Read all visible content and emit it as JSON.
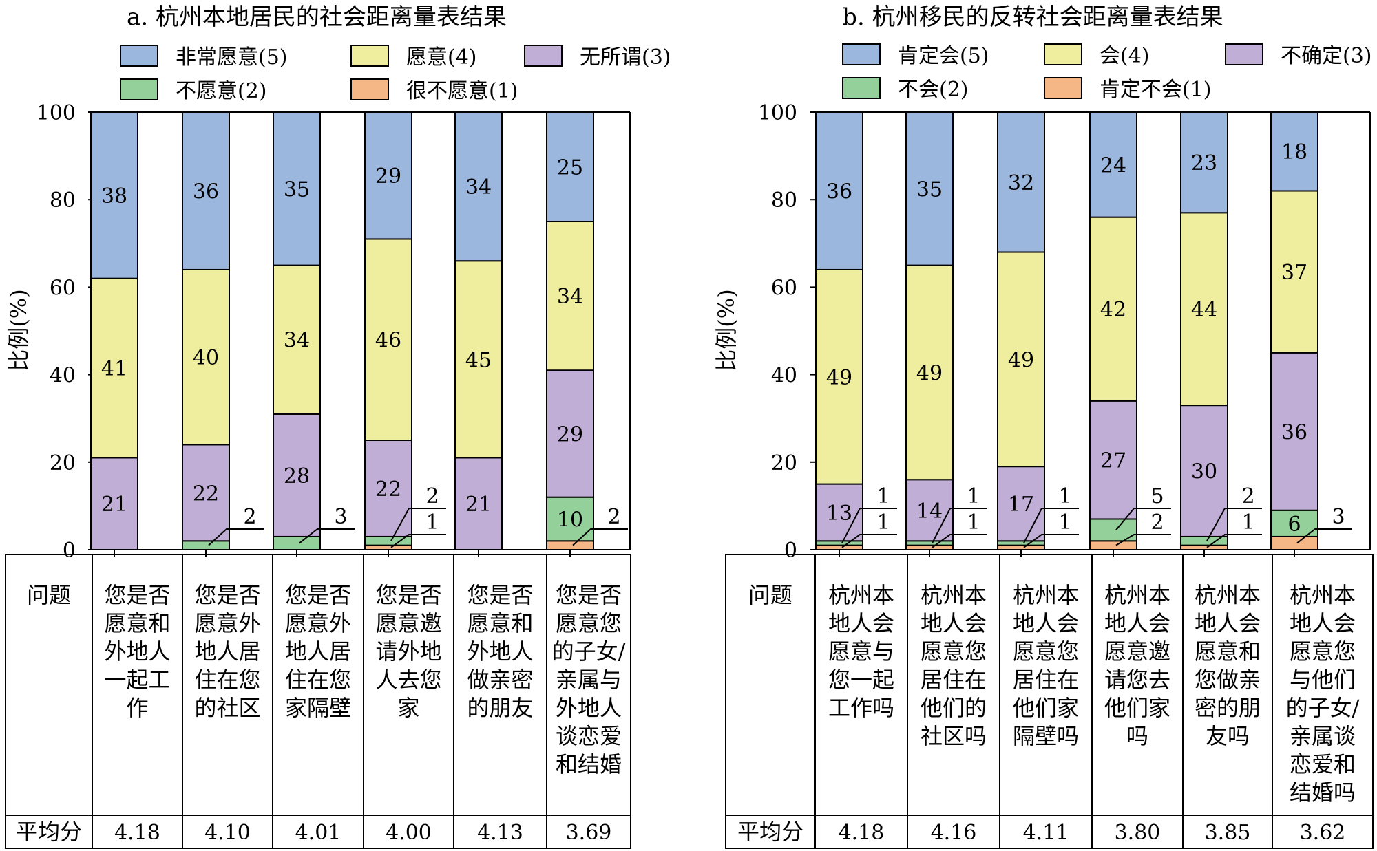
{
  "colors": {
    "s5": "#9bb7de",
    "s4": "#eeee9e",
    "s3": "#c1aed7",
    "s2": "#94d19a",
    "s1": "#f6b787",
    "stroke": "#000000"
  },
  "chart_data": [
    {
      "type": "bar",
      "stacked": true,
      "title": "a. 杭州本地居民的社会距离量表结果",
      "ylabel": "比例(%)",
      "ylim": [
        0,
        100
      ],
      "yticks": [
        "0",
        "20",
        "40",
        "60",
        "80",
        "100"
      ],
      "grid": false,
      "legend": "top",
      "series": [
        {
          "name": "非常愿意(5)",
          "color_key": "s5",
          "values": [
            38,
            36,
            35,
            29,
            34,
            25
          ]
        },
        {
          "name": "愿意(4)",
          "color_key": "s4",
          "values": [
            41,
            40,
            34,
            46,
            45,
            34
          ]
        },
        {
          "name": "无所谓(3)",
          "color_key": "s3",
          "values": [
            21,
            22,
            28,
            22,
            21,
            29
          ]
        },
        {
          "name": "不愿意(2)",
          "color_key": "s2",
          "values": [
            0,
            2,
            3,
            2,
            0,
            10
          ]
        },
        {
          "name": "很不愿意(1)",
          "color_key": "s1",
          "values": [
            0,
            0,
            0,
            1,
            0,
            2
          ]
        }
      ],
      "table": {
        "header": "问题",
        "footer": "平均分",
        "questions": [
          "您是否愿意和外地人一起工作",
          "您是否愿意外地人居住在您的社区",
          "您是否愿意外地人居住在您家隔壁",
          "您是否愿意邀请外地人去您家",
          "您是否愿意和外地人做亲密的朋友",
          "您是否愿意您的子女/亲属与外地人谈恋爱和结婚"
        ],
        "question_lines": [
          [
            "您是否",
            "愿意和",
            "外地人",
            "一起工",
            "作"
          ],
          [
            "您是否",
            "愿意外",
            "地人居",
            "住在您",
            "的社区"
          ],
          [
            "您是否",
            "愿意外",
            "地人居",
            "住在您",
            "家隔壁"
          ],
          [
            "您是否",
            "愿意邀",
            "请外地",
            "人去您",
            "家"
          ],
          [
            "您是否",
            "愿意和",
            "外地人",
            "做亲密",
            "的朋友"
          ],
          [
            "您是否",
            "愿意您",
            "的子女/",
            "亲属与",
            "外地人",
            "谈恋爱",
            "和结婚"
          ]
        ],
        "scores": [
          "4.18",
          "4.10",
          "4.01",
          "4.00",
          "4.13",
          "3.69"
        ]
      }
    },
    {
      "type": "bar",
      "stacked": true,
      "title": "b. 杭州移民的反转社会距离量表结果",
      "ylabel": "比例(%)",
      "ylim": [
        0,
        100
      ],
      "yticks": [
        "0",
        "20",
        "40",
        "60",
        "80",
        "100"
      ],
      "grid": false,
      "legend": "top",
      "series": [
        {
          "name": "肯定会(5)",
          "color_key": "s5",
          "values": [
            36,
            35,
            32,
            24,
            23,
            18
          ]
        },
        {
          "name": "会(4)",
          "color_key": "s4",
          "values": [
            49,
            49,
            49,
            42,
            44,
            37
          ]
        },
        {
          "name": "不确定(3)",
          "color_key": "s3",
          "values": [
            13,
            14,
            17,
            27,
            30,
            36
          ]
        },
        {
          "name": "不会(2)",
          "color_key": "s2",
          "values": [
            1,
            1,
            1,
            5,
            2,
            6
          ]
        },
        {
          "name": "肯定不会(1)",
          "color_key": "s1",
          "values": [
            1,
            1,
            1,
            2,
            1,
            3
          ]
        }
      ],
      "table": {
        "header": "问题",
        "footer": "平均分",
        "questions": [
          "杭州本地人会愿意与您一起工作吗",
          "杭州本地人会愿意您居住在他们的社区吗",
          "杭州本地人会愿意您居住在他们家隔壁吗",
          "杭州本地人会愿意邀请您去他们家吗",
          "杭州本地人会愿意和您做亲密的朋友吗",
          "杭州本地人会愿意您与他们的子女/亲属谈恋爱和结婚吗"
        ],
        "question_lines": [
          [
            "杭州本",
            "地人会",
            "愿意与",
            "您一起",
            "工作吗"
          ],
          [
            "杭州本",
            "地人会",
            "愿意您",
            "居住在",
            "他们的",
            "社区吗"
          ],
          [
            "杭州本",
            "地人会",
            "愿意您",
            "居住在",
            "他们家",
            "隔壁吗"
          ],
          [
            "杭州本",
            "地人会",
            "愿意邀",
            "请您去",
            "他们家",
            "吗"
          ],
          [
            "杭州本",
            "地人会",
            "愿意和",
            "您做亲",
            "密的朋",
            "友吗"
          ],
          [
            "杭州本",
            "地人会",
            "愿意您",
            "与他们",
            "的子女/",
            "亲属谈",
            "恋爱和",
            "结婚吗"
          ]
        ],
        "scores": [
          "4.18",
          "4.16",
          "4.11",
          "3.80",
          "3.85",
          "3.62"
        ]
      }
    }
  ]
}
